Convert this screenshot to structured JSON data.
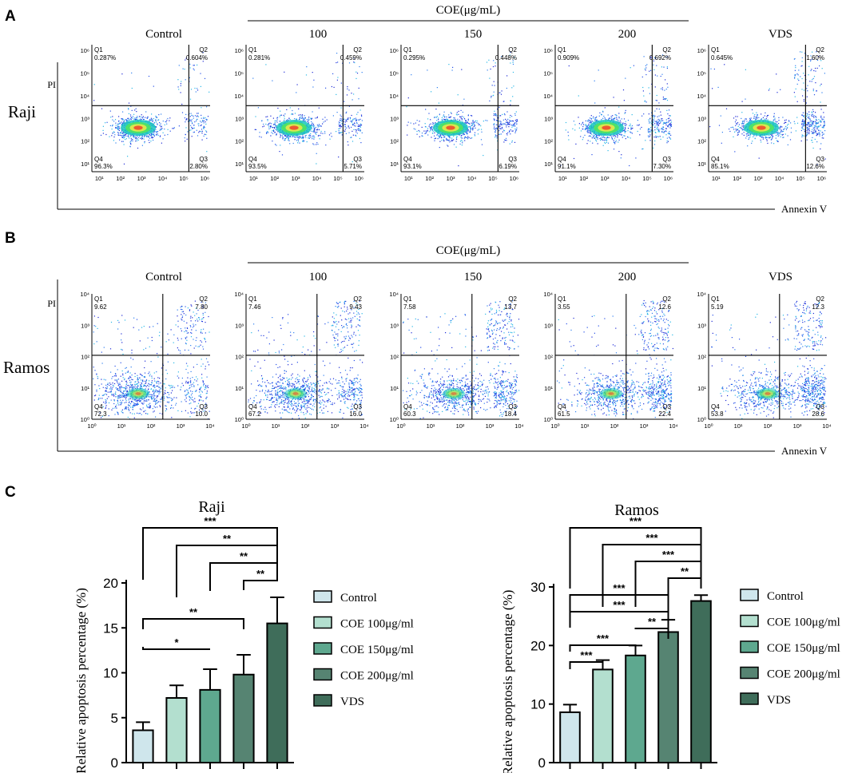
{
  "panels": {
    "A": "A",
    "B": "B",
    "C": "C"
  },
  "flow": {
    "group_label": "COE(μg/mL)",
    "x_axis_label": "Annexin V",
    "y_axis_label": "PI",
    "conditions": [
      "Control",
      "100",
      "150",
      "200",
      "VDS"
    ],
    "raji": {
      "row_label": "Raji",
      "y_ticks": [
        "10¹",
        "10²",
        "10³",
        "10⁴",
        "10⁵",
        "10⁶"
      ],
      "x_ticks": [
        "10¹",
        "10²",
        "10³",
        "10⁴",
        "10⁵",
        "10⁶"
      ],
      "plots": [
        {
          "q1": "0.287%",
          "q2": "0.604%",
          "q3": "2.80%",
          "q4": "96.3%"
        },
        {
          "q1": "0.281%",
          "q2": "0.459%",
          "q3": "5.71%",
          "q4": "93.5%"
        },
        {
          "q1": "0.295%",
          "q2": "0.448%",
          "q3": "6.19%",
          "q4": "93.1%"
        },
        {
          "q1": "0.909%",
          "q2": "0.692%",
          "q3": "7.30%",
          "q4": "91.1%"
        },
        {
          "q1": "0.645%",
          "q2": "1.60%",
          "q3": "12.6%",
          "q4": "85.1%"
        }
      ]
    },
    "ramos": {
      "row_label": "Ramos",
      "y_ticks": [
        "10⁰",
        "10¹",
        "10²",
        "10³",
        "10⁴"
      ],
      "x_ticks": [
        "10⁰",
        "10¹",
        "10²",
        "10³",
        "10⁴"
      ],
      "plots": [
        {
          "q1": "9.62",
          "q2": "7.80",
          "q3": "10.0",
          "q4": "72.3"
        },
        {
          "q1": "7.46",
          "q2": "9.43",
          "q3": "16.0",
          "q4": "67.2"
        },
        {
          "q1": "7.58",
          "q2": "13.7",
          "q3": "18.4",
          "q4": "60.3"
        },
        {
          "q1": "3.55",
          "q2": "12.6",
          "q3": "22.4",
          "q4": "61.5"
        },
        {
          "q1": "5.19",
          "q2": "12.3",
          "q3": "28.6",
          "q4": "53.8"
        }
      ]
    },
    "quadrant_names": [
      "Q1",
      "Q2",
      "Q3",
      "Q4"
    ]
  },
  "chart_data": [
    {
      "type": "bar",
      "title": "Raji",
      "ylabel": "Relative apoptosis percentage (%)",
      "xlabel": "",
      "ylim": [
        0,
        20
      ],
      "yticks": [
        0,
        5,
        10,
        15,
        20
      ],
      "categories": [
        "Control",
        "COE 100μg/ml",
        "COE 150μg/ml",
        "COE 200μg/ml",
        "VDS"
      ],
      "values": [
        3.6,
        7.2,
        8.1,
        9.8,
        15.5
      ],
      "errors": [
        0.9,
        1.4,
        2.3,
        2.2,
        2.9
      ],
      "colors": [
        "#cfe6ec",
        "#b3dfcf",
        "#5ea88f",
        "#568472",
        "#3f6d5a"
      ],
      "significance": [
        {
          "from": 0,
          "to": 4,
          "label": "***"
        },
        {
          "from": 1,
          "to": 4,
          "label": "**"
        },
        {
          "from": 2,
          "to": 4,
          "label": "**"
        },
        {
          "from": 3,
          "to": 4,
          "label": "**"
        },
        {
          "from": 0,
          "to": 3,
          "label": "**"
        },
        {
          "from": 0,
          "to": 2,
          "label": "*"
        }
      ]
    },
    {
      "type": "bar",
      "title": "Ramos",
      "ylabel": "Relative apoptosis percentage (%)",
      "xlabel": "",
      "ylim": [
        0,
        30
      ],
      "yticks": [
        0,
        10,
        20,
        30
      ],
      "categories": [
        "Control",
        "COE 100μg/ml",
        "COE 150μg/ml",
        "COE 200μg/ml",
        "VDS"
      ],
      "values": [
        8.6,
        15.9,
        18.3,
        22.3,
        27.6
      ],
      "errors": [
        1.3,
        1.6,
        1.7,
        2.1,
        1.0
      ],
      "colors": [
        "#cfe6ec",
        "#b3dfcf",
        "#5ea88f",
        "#568472",
        "#3f6d5a"
      ],
      "significance": [
        {
          "from": 0,
          "to": 4,
          "label": "***"
        },
        {
          "from": 1,
          "to": 4,
          "label": "***"
        },
        {
          "from": 2,
          "to": 4,
          "label": "***"
        },
        {
          "from": 3,
          "to": 4,
          "label": "**"
        },
        {
          "from": 0,
          "to": 3,
          "label": "***"
        },
        {
          "from": 0,
          "to": 3,
          "label": "***"
        },
        {
          "from": 2,
          "to": 3,
          "label": "**"
        },
        {
          "from": 0,
          "to": 2,
          "label": "***"
        },
        {
          "from": 0,
          "to": 1,
          "label": "***"
        }
      ]
    }
  ]
}
